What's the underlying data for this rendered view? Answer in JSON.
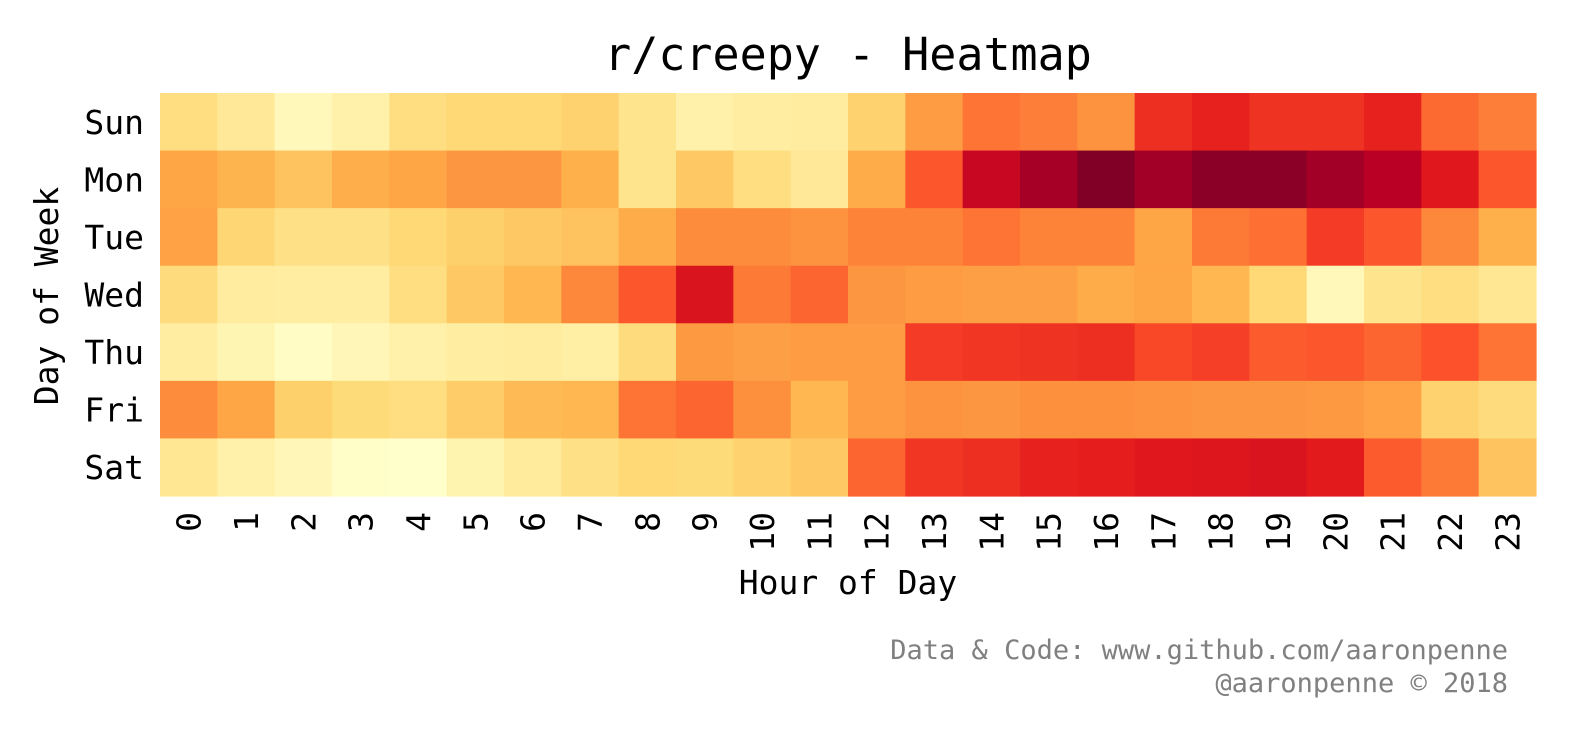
{
  "chart_data": {
    "type": "heatmap",
    "title": "r/creepy - Heatmap",
    "xlabel": "Hour of Day",
    "ylabel": "Day of Week",
    "x_categories": [
      "0",
      "1",
      "2",
      "3",
      "4",
      "5",
      "6",
      "7",
      "8",
      "9",
      "10",
      "11",
      "12",
      "13",
      "14",
      "15",
      "16",
      "17",
      "18",
      "19",
      "20",
      "21",
      "22",
      "23"
    ],
    "y_categories": [
      "Sun",
      "Mon",
      "Tue",
      "Wed",
      "Thu",
      "Fri",
      "Sat"
    ],
    "value_range": [
      0,
      1
    ],
    "colormap": "YlOrRd",
    "colorbar": false,
    "grid": false,
    "values": [
      [
        0.22,
        0.15,
        0.05,
        0.1,
        0.22,
        0.25,
        0.25,
        0.27,
        0.18,
        0.1,
        0.12,
        0.13,
        0.27,
        0.45,
        0.55,
        0.53,
        0.48,
        0.7,
        0.73,
        0.69,
        0.69,
        0.73,
        0.57,
        0.53
      ],
      [
        0.42,
        0.37,
        0.32,
        0.39,
        0.42,
        0.47,
        0.47,
        0.38,
        0.18,
        0.3,
        0.22,
        0.15,
        0.4,
        0.61,
        0.84,
        0.92,
        1.0,
        0.93,
        0.98,
        0.98,
        0.93,
        0.88,
        0.76,
        0.61
      ],
      [
        0.43,
        0.26,
        0.2,
        0.2,
        0.25,
        0.28,
        0.3,
        0.32,
        0.4,
        0.5,
        0.5,
        0.48,
        0.52,
        0.52,
        0.55,
        0.52,
        0.52,
        0.42,
        0.54,
        0.56,
        0.67,
        0.61,
        0.51,
        0.38
      ],
      [
        0.23,
        0.13,
        0.12,
        0.12,
        0.22,
        0.3,
        0.36,
        0.51,
        0.61,
        0.78,
        0.54,
        0.58,
        0.47,
        0.45,
        0.44,
        0.44,
        0.4,
        0.42,
        0.36,
        0.25,
        0.05,
        0.18,
        0.22,
        0.16
      ],
      [
        0.12,
        0.07,
        0.02,
        0.06,
        0.1,
        0.12,
        0.13,
        0.11,
        0.23,
        0.46,
        0.44,
        0.45,
        0.45,
        0.67,
        0.68,
        0.69,
        0.7,
        0.64,
        0.66,
        0.6,
        0.61,
        0.58,
        0.62,
        0.55
      ],
      [
        0.5,
        0.42,
        0.28,
        0.24,
        0.22,
        0.29,
        0.35,
        0.36,
        0.55,
        0.58,
        0.49,
        0.36,
        0.45,
        0.48,
        0.47,
        0.49,
        0.49,
        0.48,
        0.47,
        0.47,
        0.46,
        0.43,
        0.27,
        0.23
      ],
      [
        0.16,
        0.1,
        0.06,
        0.01,
        0.0,
        0.08,
        0.14,
        0.2,
        0.25,
        0.24,
        0.27,
        0.3,
        0.58,
        0.68,
        0.7,
        0.73,
        0.74,
        0.76,
        0.77,
        0.78,
        0.75,
        0.6,
        0.54,
        0.32
      ]
    ]
  },
  "footer": {
    "line1": "Data & Code: www.github.com/aaronpenne",
    "line2": "@aaronpenne © 2018"
  }
}
